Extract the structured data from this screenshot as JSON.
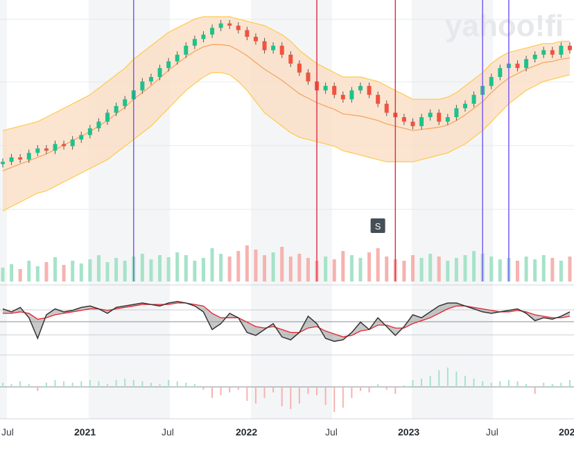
{
  "watermark": "yahoo!fi",
  "split_marker": "S",
  "colors": {
    "up": "#1ec28b",
    "down": "#f0533f",
    "band_fill": "#fbdcc0",
    "band_edge": "#ffc94a",
    "sma": "#f4a259",
    "purple_line": "#7a5af5",
    "red_line": "#e0334c",
    "macd_line": "#333333",
    "signal_line": "#e8202a",
    "vol_up": "#a6e3c9",
    "vol_down": "#f5b3b0"
  },
  "chart_data": {
    "type": "candlestick",
    "panels": [
      "price",
      "macd",
      "histogram"
    ],
    "x_tick_labels": [
      "Jul",
      "2021",
      "Jul",
      "2022",
      "Jul",
      "2023",
      "Jul",
      "202"
    ],
    "price": {
      "ylim": [
        0,
        100
      ],
      "close": [
        30,
        32,
        31,
        34,
        36,
        35,
        38,
        37,
        40,
        42,
        45,
        48,
        52,
        55,
        58,
        62,
        66,
        68,
        72,
        75,
        78,
        82,
        85,
        87,
        90,
        92,
        91,
        89,
        86,
        84,
        80,
        82,
        78,
        74,
        70,
        66,
        62,
        64,
        60,
        58,
        62,
        64,
        60,
        56,
        52,
        50,
        48,
        46,
        50,
        52,
        48,
        50,
        54,
        56,
        60,
        64,
        68,
        72,
        74,
        72,
        76,
        78,
        80,
        78,
        82,
        80
      ],
      "bb_upper": [
        44,
        45,
        46,
        47,
        48,
        50,
        52,
        54,
        56,
        58,
        60,
        63,
        66,
        69,
        72,
        76,
        79,
        82,
        85,
        88,
        90,
        92,
        94,
        95,
        95,
        95,
        95,
        94,
        93,
        92,
        91,
        89,
        87,
        84,
        80,
        77,
        74,
        72,
        70,
        68,
        68,
        68,
        67,
        66,
        64,
        62,
        60,
        58,
        58,
        58,
        58,
        59,
        61,
        64,
        67,
        70,
        74,
        77,
        79,
        80,
        81,
        82,
        83,
        83,
        84,
        84
      ],
      "bb_lower": [
        8,
        10,
        12,
        14,
        16,
        17,
        19,
        21,
        23,
        25,
        27,
        29,
        31,
        34,
        37,
        40,
        43,
        46,
        50,
        54,
        58,
        62,
        65,
        68,
        70,
        70,
        69,
        66,
        62,
        57,
        52,
        49,
        46,
        43,
        41,
        40,
        39,
        38,
        37,
        35,
        34,
        33,
        32,
        31,
        30,
        30,
        30,
        30,
        31,
        32,
        33,
        34,
        36,
        38,
        41,
        44,
        48,
        52,
        56,
        59,
        62,
        64,
        66,
        67,
        68,
        69
      ],
      "volume": [
        20,
        25,
        18,
        30,
        22,
        28,
        35,
        24,
        30,
        26,
        32,
        38,
        28,
        34,
        30,
        36,
        40,
        32,
        38,
        35,
        42,
        38,
        30,
        34,
        48,
        40,
        36,
        44,
        52,
        46,
        38,
        42,
        50,
        36,
        40,
        34,
        30,
        36,
        32,
        44,
        38,
        34,
        42,
        48,
        36,
        32,
        30,
        38,
        34,
        40,
        36,
        30,
        34,
        38,
        44,
        40,
        36,
        32,
        34,
        30,
        36,
        32,
        38,
        34,
        30,
        36
      ],
      "vertical_markers": [
        {
          "type": "purple",
          "x_index": 15
        },
        {
          "type": "red",
          "x_index": 36
        },
        {
          "type": "red",
          "x_index": 45
        },
        {
          "type": "purple",
          "x_index": 55
        },
        {
          "type": "purple",
          "x_index": 58
        }
      ],
      "split_marker_index": 43
    },
    "macd": {
      "ylim": [
        -2,
        2
      ],
      "macd": [
        0.8,
        0.6,
        0.9,
        0.2,
        -1.2,
        0.4,
        0.8,
        0.6,
        0.7,
        0.9,
        1.0,
        0.8,
        0.5,
        0.9,
        1.0,
        1.1,
        1.2,
        1.1,
        1.0,
        1.2,
        1.3,
        1.2,
        1.0,
        0.6,
        -0.6,
        -0.2,
        0.5,
        0.2,
        -0.8,
        -1.0,
        -0.6,
        -0.2,
        -1.1,
        -1.3,
        -0.8,
        0.3,
        -0.2,
        -1.2,
        -1.4,
        -1.3,
        -0.8,
        -0.1,
        -0.6,
        0.2,
        -0.4,
        -1.0,
        -0.4,
        0.4,
        0.2,
        0.6,
        1.0,
        1.2,
        1.2,
        1.0,
        0.8,
        0.6,
        0.5,
        0.6,
        0.7,
        0.8,
        0.5,
        0.0,
        0.2,
        0.1,
        0.3,
        0.6
      ],
      "signal": [
        0.5,
        0.5,
        0.6,
        0.5,
        0.1,
        0.2,
        0.4,
        0.5,
        0.6,
        0.7,
        0.8,
        0.8,
        0.7,
        0.8,
        0.9,
        1.0,
        1.1,
        1.1,
        1.1,
        1.1,
        1.2,
        1.2,
        1.1,
        1.0,
        0.5,
        0.2,
        0.2,
        0.2,
        -0.1,
        -0.4,
        -0.5,
        -0.4,
        -0.6,
        -0.8,
        -0.8,
        -0.5,
        -0.4,
        -0.7,
        -0.9,
        -1.1,
        -1.0,
        -0.7,
        -0.6,
        -0.3,
        -0.3,
        -0.5,
        -0.5,
        -0.2,
        0.0,
        0.2,
        0.5,
        0.8,
        1.0,
        1.0,
        0.9,
        0.8,
        0.7,
        0.6,
        0.6,
        0.7,
        0.6,
        0.4,
        0.3,
        0.2,
        0.2,
        0.3
      ]
    },
    "histogram": {
      "ylim": [
        -3,
        3
      ],
      "values": [
        0.3,
        0.2,
        0.4,
        0.2,
        -0.3,
        0.3,
        0.5,
        0.4,
        0.3,
        0.4,
        0.5,
        0.4,
        0.2,
        0.5,
        0.6,
        0.5,
        0.4,
        0.3,
        0.2,
        0.5,
        0.4,
        0.3,
        0.2,
        -0.2,
        -0.8,
        -0.6,
        -0.4,
        -0.2,
        -1.0,
        -1.2,
        -0.8,
        -0.4,
        -1.4,
        -1.6,
        -1.2,
        -0.5,
        -0.6,
        -1.3,
        -1.8,
        -1.5,
        -0.8,
        -0.3,
        -0.4,
        0.2,
        -0.2,
        -0.5,
        0.1,
        0.5,
        0.6,
        0.8,
        1.2,
        1.4,
        1.1,
        0.8,
        0.6,
        0.4,
        0.3,
        0.4,
        0.5,
        0.4,
        0.2,
        -0.5,
        0.3,
        0.2,
        0.3,
        0.5
      ]
    }
  }
}
